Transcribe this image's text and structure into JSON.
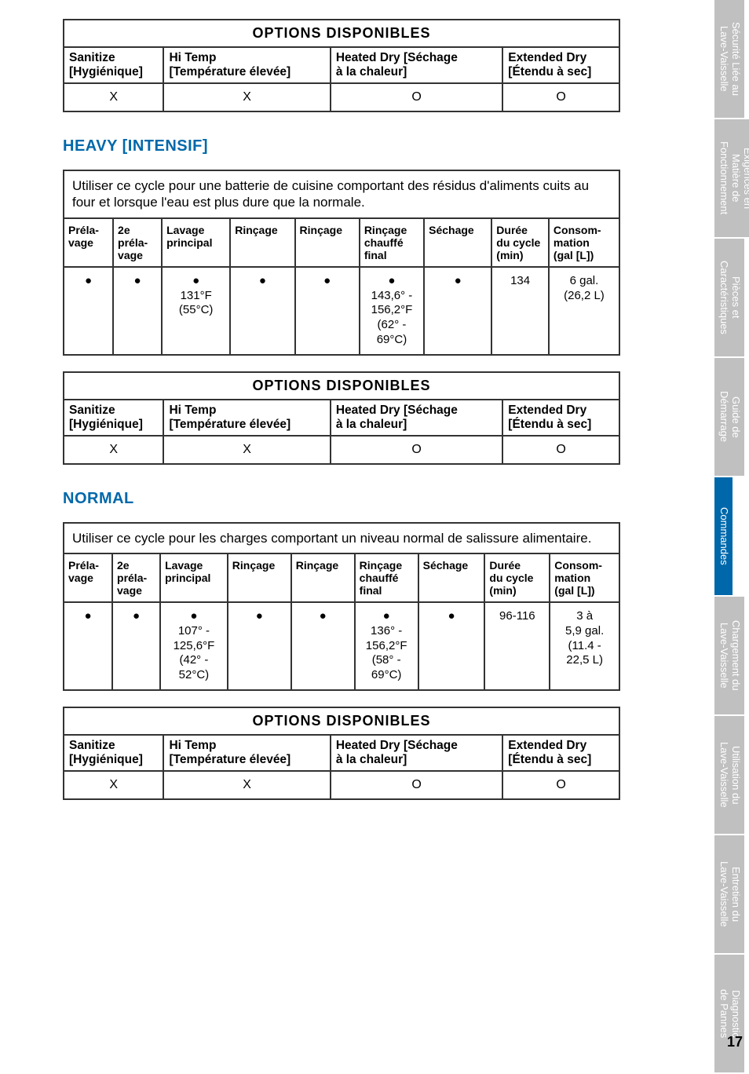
{
  "options_table1": {
    "title": "OPTIONS DISPONIBLES",
    "headers": [
      "Sanitize\n[Hygiénique]",
      "Hi Temp\n[Température élevée]",
      "Heated Dry [Séchage\nà la chaleur]",
      "Extended Dry\n[Étendu à sec]"
    ],
    "values": [
      "X",
      "X",
      "O",
      "O"
    ]
  },
  "section_heavy": {
    "title": "HEAVY [INTENSIF]",
    "intro": "Utiliser ce cycle pour une batterie de cuisine comportant des résidus d'aliments cuits au four et lorsque l'eau est plus dure que la normale.",
    "phase_headers": [
      "Préla-\nvage",
      "2e\npréla-\nvage",
      "Lavage\nprincipal",
      "Rinçage",
      "Rinçage",
      "Rinçage\nchauffé\nfinal",
      "Séchage",
      "Durée\ndu cycle\n(min)",
      "Consom-\nmation\n(gal [L])"
    ],
    "phase_data": [
      "●",
      "●",
      "●\n131°F\n(55°C)",
      "●",
      "●",
      "●\n143,6° -\n156,2°F\n(62° -\n69°C)",
      "●",
      "134",
      "6 gal.\n(26,2 L)"
    ]
  },
  "options_table2": {
    "title": "OPTIONS DISPONIBLES",
    "headers": [
      "Sanitize\n[Hygiénique]",
      "Hi Temp\n[Température élevée]",
      "Heated Dry [Séchage\nà la chaleur]",
      "Extended Dry\n[Étendu à sec]"
    ],
    "values": [
      "X",
      "X",
      "O",
      "O"
    ]
  },
  "section_normal": {
    "title": "NORMAL",
    "intro": "Utiliser ce cycle pour les charges comportant un niveau normal de salissure alimentaire.",
    "phase_headers": [
      "Préla-\nvage",
      "2e\npréla-\nvage",
      "Lavage\nprincipal",
      "Rinçage",
      "Rinçage",
      "Rinçage\nchauffé\nfinal",
      "Séchage",
      "Durée\ndu cycle\n(min)",
      "Consom-\nmation\n(gal [L])"
    ],
    "phase_data": [
      "●",
      "●",
      "●\n107° -\n125,6°F\n(42° -\n52°C)",
      "●",
      "●",
      "●\n136° -\n156,2°F\n(58° -\n69°C)",
      "●",
      "96-116",
      "3 à\n5,9 gal.\n(11.4 -\n22,5 L)"
    ]
  },
  "options_table3": {
    "title": "OPTIONS DISPONIBLES",
    "headers": [
      "Sanitize\n[Hygiénique]",
      "Hi Temp\n[Température élevée]",
      "Heated Dry [Séchage\nà la chaleur]",
      "Extended Dry\n[Étendu à sec]"
    ],
    "values": [
      "X",
      "X",
      "O",
      "O"
    ]
  },
  "nav_tabs": [
    {
      "label": "Sécurité Liée au\nLave-Vaisselle",
      "active": false
    },
    {
      "label": "Exigences en\nMatière de\nFonctionnement",
      "active": false
    },
    {
      "label": "Pièces et\nCaractéristiques",
      "active": false
    },
    {
      "label": "Guide de\nDémarrage",
      "active": false
    },
    {
      "label": "Commandes",
      "active": true
    },
    {
      "label": "Chargement du\nLave-Vaisselle",
      "active": false
    },
    {
      "label": "Utilisation du\nLave-Vaisselle",
      "active": false
    },
    {
      "label": "Entretien du\nLave-Vaisselle",
      "active": false
    },
    {
      "label": "Diagnostic\nde Pannes",
      "active": false
    }
  ],
  "page_number": "17",
  "colors": {
    "blue": "#0068aa",
    "grey": "#c0c0c0",
    "border": "#333333"
  }
}
